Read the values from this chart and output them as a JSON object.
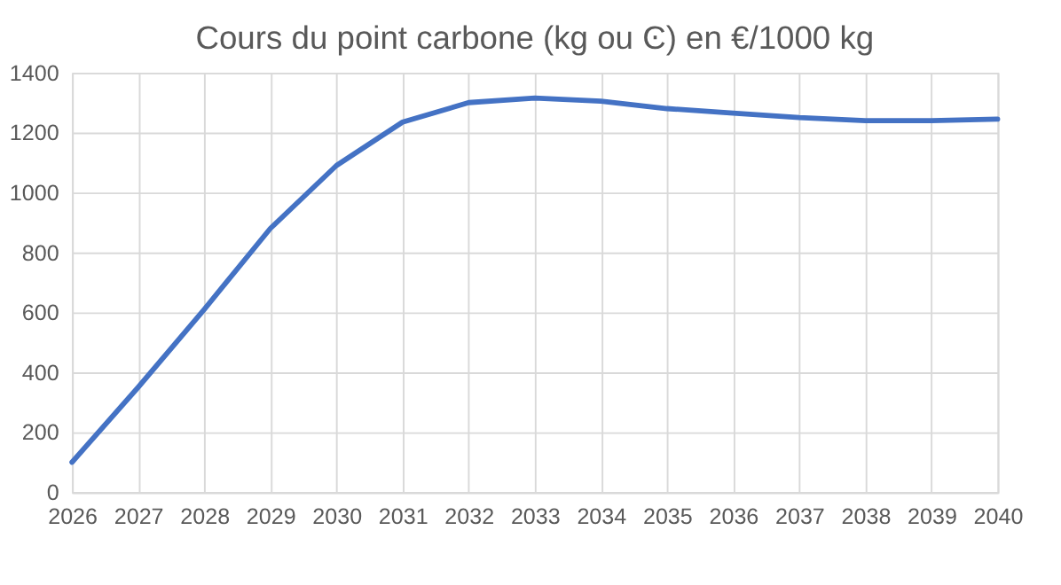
{
  "chart_data": {
    "type": "line",
    "title": "Cours du point carbone (kg ou Ͼ) en €/1000 kg",
    "x": [
      2026,
      2027,
      2028,
      2029,
      2030,
      2031,
      2032,
      2033,
      2034,
      2035,
      2036,
      2037,
      2038,
      2039,
      2040
    ],
    "series": [
      {
        "color": "#4472c4",
        "values": [
          100,
          350,
          610,
          880,
          1090,
          1235,
          1300,
          1315,
          1305,
          1280,
          1265,
          1250,
          1240,
          1240,
          1245
        ]
      }
    ],
    "xlim": [
      2026,
      2040
    ],
    "xticks": [
      2026,
      2027,
      2028,
      2029,
      2030,
      2031,
      2032,
      2033,
      2034,
      2035,
      2036,
      2037,
      2038,
      2039,
      2040
    ],
    "ylim": [
      0,
      1400
    ],
    "yticks": [
      0,
      200,
      400,
      600,
      800,
      1000,
      1200,
      1400
    ],
    "grid": true,
    "marker": "none",
    "line_style": "solid"
  }
}
